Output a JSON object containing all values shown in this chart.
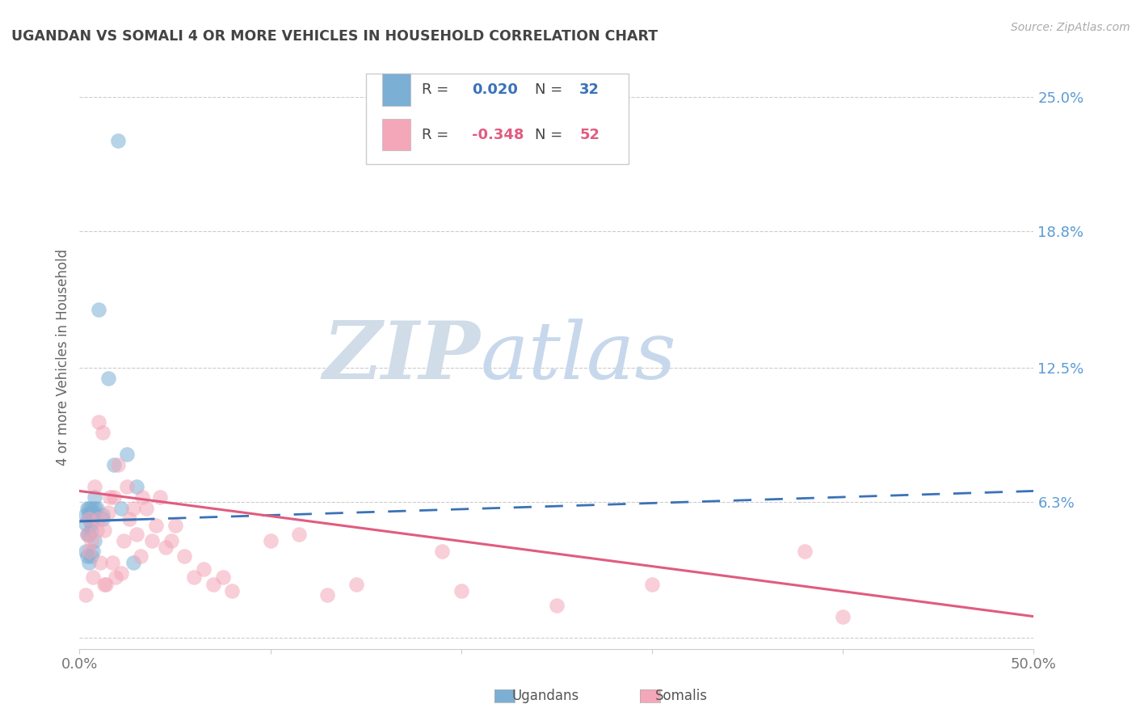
{
  "title": "UGANDAN VS SOMALI 4 OR MORE VEHICLES IN HOUSEHOLD CORRELATION CHART",
  "source": "Source: ZipAtlas.com",
  "ylabel": "4 or more Vehicles in Household",
  "xlim": [
    0.0,
    0.5
  ],
  "ylim": [
    -0.005,
    0.265
  ],
  "ytick_vals": [
    0.0,
    0.063,
    0.125,
    0.188,
    0.25
  ],
  "ytick_labels": [
    "",
    "6.3%",
    "12.5%",
    "18.8%",
    "25.0%"
  ],
  "xtick_vals": [
    0.0,
    0.1,
    0.2,
    0.3,
    0.4,
    0.5
  ],
  "xtick_labels": [
    "0.0%",
    "",
    "",
    "",
    "",
    "50.0%"
  ],
  "ugandan_color": "#7bafd4",
  "somali_color": "#f4a7b9",
  "line_blue": "#3a72b8",
  "line_pink": "#e05c80",
  "ugandan_R": 0.02,
  "ugandan_N": 32,
  "somali_R": -0.348,
  "somali_N": 52,
  "ugandan_x": [
    0.003,
    0.003,
    0.003,
    0.004,
    0.004,
    0.004,
    0.005,
    0.005,
    0.005,
    0.005,
    0.005,
    0.006,
    0.006,
    0.006,
    0.006,
    0.007,
    0.007,
    0.007,
    0.008,
    0.008,
    0.008,
    0.009,
    0.01,
    0.012,
    0.012,
    0.015,
    0.018,
    0.02,
    0.022,
    0.025,
    0.028,
    0.03
  ],
  "ugandan_y": [
    0.04,
    0.053,
    0.057,
    0.038,
    0.048,
    0.06,
    0.035,
    0.048,
    0.055,
    0.057,
    0.06,
    0.038,
    0.05,
    0.053,
    0.06,
    0.04,
    0.055,
    0.058,
    0.045,
    0.06,
    0.065,
    0.06,
    0.152,
    0.055,
    0.057,
    0.12,
    0.08,
    0.23,
    0.06,
    0.085,
    0.035,
    0.07
  ],
  "somali_x": [
    0.003,
    0.004,
    0.005,
    0.005,
    0.006,
    0.007,
    0.008,
    0.009,
    0.01,
    0.01,
    0.011,
    0.012,
    0.013,
    0.013,
    0.014,
    0.015,
    0.016,
    0.017,
    0.018,
    0.019,
    0.02,
    0.022,
    0.023,
    0.025,
    0.026,
    0.028,
    0.03,
    0.032,
    0.033,
    0.035,
    0.038,
    0.04,
    0.042,
    0.045,
    0.048,
    0.05,
    0.055,
    0.06,
    0.065,
    0.07,
    0.075,
    0.08,
    0.1,
    0.115,
    0.13,
    0.145,
    0.19,
    0.2,
    0.25,
    0.3,
    0.38,
    0.4
  ],
  "somali_y": [
    0.02,
    0.048,
    0.04,
    0.055,
    0.045,
    0.028,
    0.07,
    0.05,
    0.055,
    0.1,
    0.035,
    0.095,
    0.025,
    0.05,
    0.025,
    0.058,
    0.065,
    0.035,
    0.065,
    0.028,
    0.08,
    0.03,
    0.045,
    0.07,
    0.055,
    0.06,
    0.048,
    0.038,
    0.065,
    0.06,
    0.045,
    0.052,
    0.065,
    0.042,
    0.045,
    0.052,
    0.038,
    0.028,
    0.032,
    0.025,
    0.028,
    0.022,
    0.045,
    0.048,
    0.02,
    0.025,
    0.04,
    0.022,
    0.015,
    0.025,
    0.04,
    0.01
  ],
  "background_color": "#ffffff",
  "grid_color": "#cccccc",
  "watermark_zip": "ZIP",
  "watermark_atlas": "atlas",
  "watermark_color_zip": "#c8d8ec",
  "watermark_color_atlas": "#c8d8ec",
  "title_color": "#444444",
  "right_label_color": "#5b9bd5",
  "axis_color": "#cccccc"
}
